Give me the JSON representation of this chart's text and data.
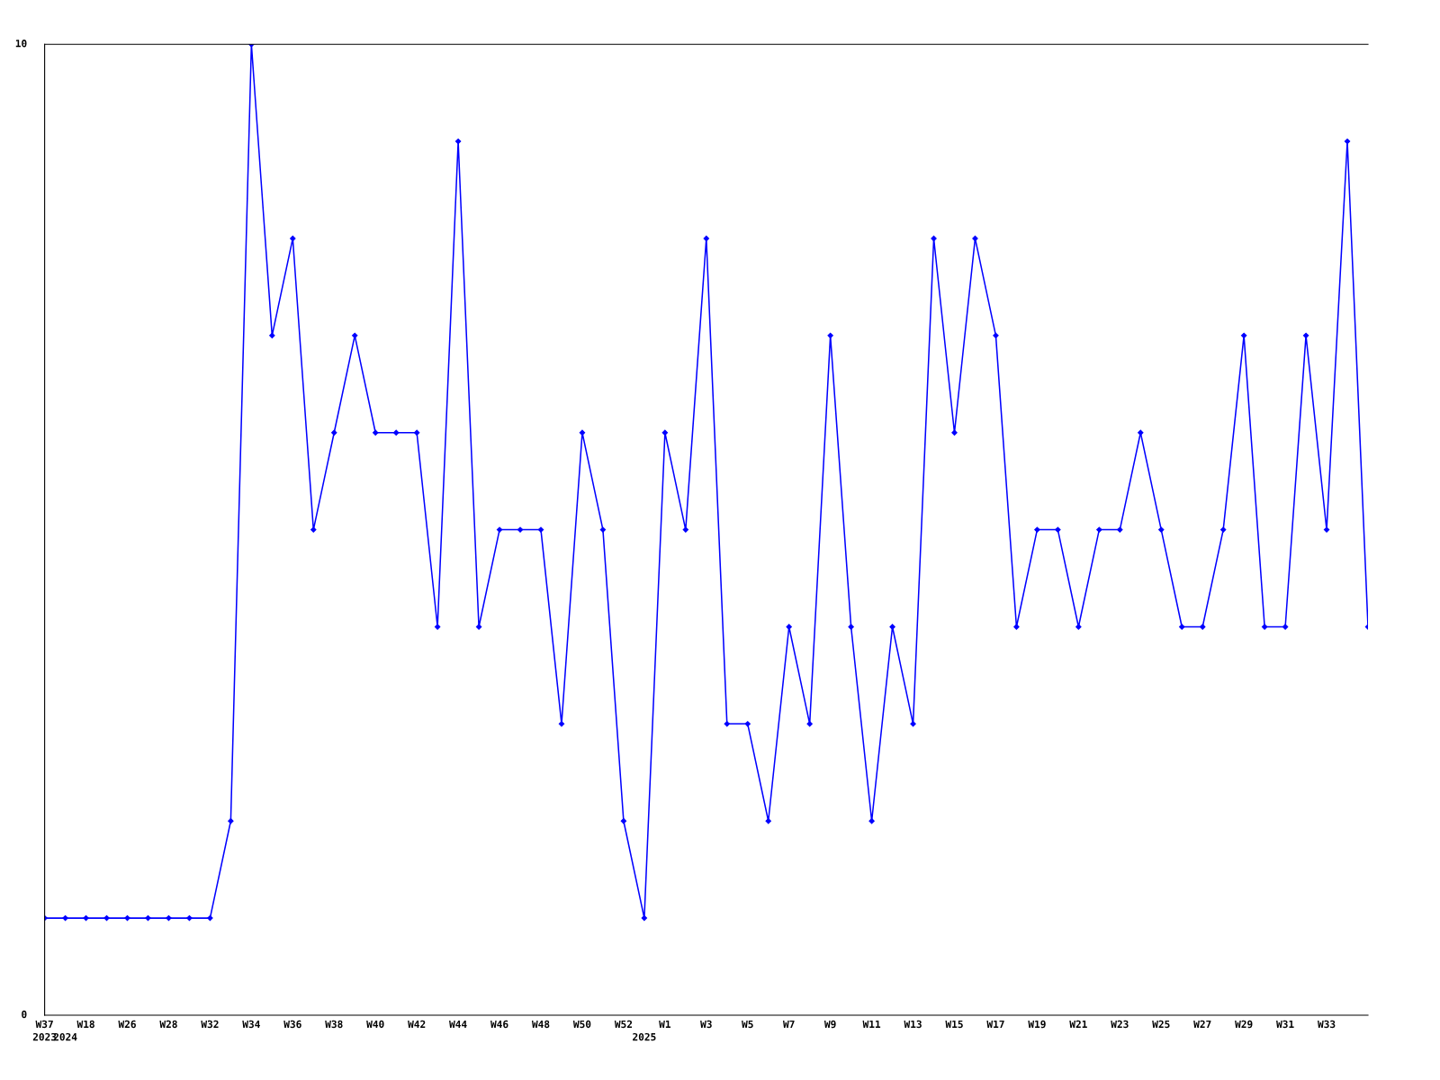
{
  "chart_data": {
    "type": "line",
    "marker": "diamond",
    "line_style": "solid",
    "grid": false,
    "legend": false,
    "categories": [
      "W37\n2023",
      "\n2024",
      "W18",
      null,
      "W26",
      null,
      "W28",
      null,
      "W32",
      null,
      "W34",
      null,
      "W36",
      null,
      "W38",
      null,
      "W40",
      null,
      "W42",
      null,
      "W44",
      null,
      "W46",
      null,
      "W48",
      null,
      "W50",
      null,
      "W52",
      "\n2025",
      "W1",
      null,
      "W3",
      null,
      "W5",
      null,
      "W7",
      null,
      "W9",
      null,
      "W11",
      null,
      "W13",
      null,
      "W15",
      null,
      "W17",
      null,
      "W19",
      null,
      "W21",
      null,
      "W23",
      null,
      "W25",
      null,
      "W27",
      null,
      "W29",
      null,
      "W31",
      null,
      "W33",
      null,
      null
    ],
    "series": [
      {
        "color": "#0000ff",
        "values": [
          1,
          1,
          1,
          1,
          1,
          1,
          1,
          1,
          1,
          2,
          10,
          7,
          8,
          5,
          6,
          7,
          6,
          6,
          6,
          4,
          9,
          4,
          5,
          5,
          5,
          3,
          6,
          5,
          2,
          1,
          6,
          5,
          8,
          3,
          3,
          2,
          4,
          3,
          7,
          4,
          2,
          4,
          3,
          8,
          6,
          8,
          7,
          4,
          5,
          5,
          4,
          5,
          5,
          6,
          5,
          4,
          4,
          5,
          7,
          4,
          4,
          7,
          5,
          9,
          4
        ]
      }
    ],
    "ylim": [
      0,
      10
    ],
    "yticks": [
      0,
      10
    ]
  }
}
